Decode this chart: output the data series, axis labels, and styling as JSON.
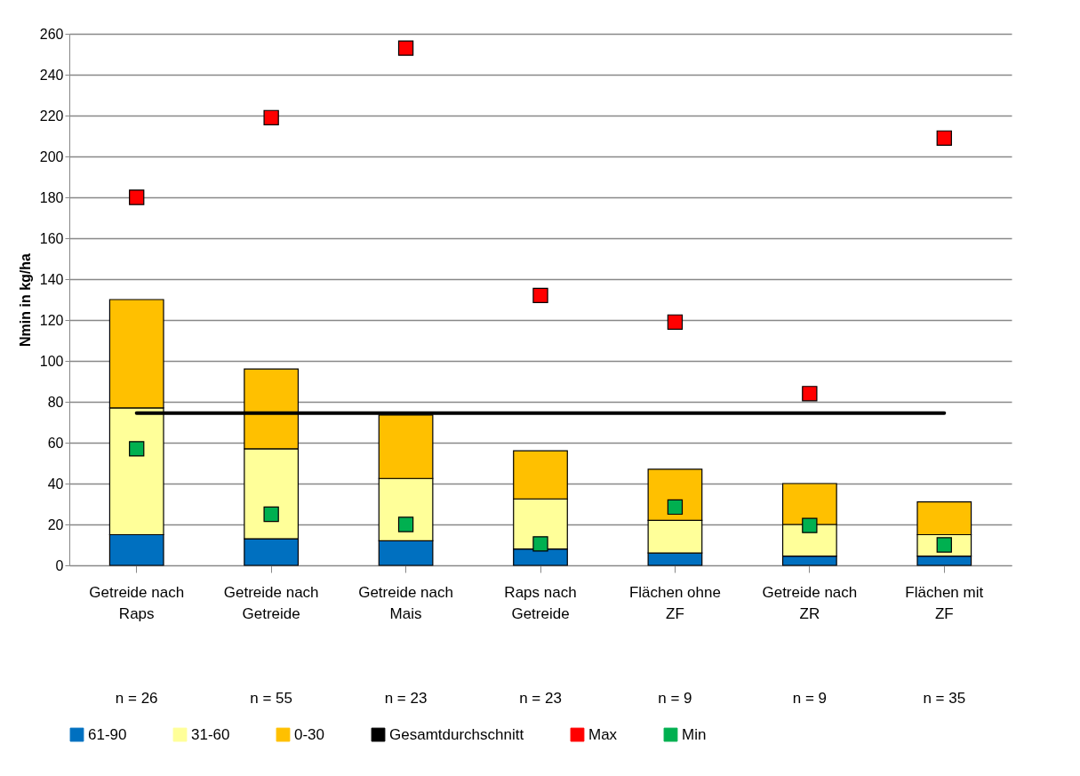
{
  "chart_data": {
    "type": "bar",
    "stacked": true,
    "ylabel": "Nmin in kg/ha",
    "categories": [
      "Getreide nach Raps",
      "Getreide nach Getreide",
      "Getreide nach Mais",
      "Raps nach Getreide",
      "Flächen ohne ZF",
      "Getreide nach ZR",
      "Flächen mit ZF"
    ],
    "series": [
      {
        "name": "61-90",
        "color": "#0070c0",
        "values": [
          15,
          13,
          12,
          8,
          6,
          4.5,
          4.5
        ]
      },
      {
        "name": "31-60",
        "color": "#ffff99",
        "values": [
          62,
          44,
          30.5,
          24.5,
          16,
          15.5,
          10.5
        ]
      },
      {
        "name": "0-30",
        "color": "#ffc000",
        "values": [
          53,
          39,
          31,
          23.5,
          25,
          20,
          16
        ]
      },
      {
        "name": "Gesamtdurchschnitt",
        "type": "line",
        "color": "#000000",
        "values": [
          74.5,
          74.5,
          74.5,
          74.5,
          74.5,
          74.5,
          74.5
        ]
      },
      {
        "name": "Max",
        "type": "scatter",
        "marker": "square",
        "color": "#ff0000",
        "values": [
          180,
          219,
          253,
          132,
          119,
          84,
          209
        ]
      },
      {
        "name": "Min",
        "type": "scatter",
        "marker": "square",
        "color": "#00b050",
        "values": [
          57,
          25,
          20,
          10.5,
          28.5,
          19.5,
          10
        ]
      }
    ],
    "annotations": [
      "n = 26",
      "n = 55",
      "n = 23",
      "n = 23",
      "n = 9",
      "n = 9",
      "n = 35"
    ],
    "ylim": [
      0,
      260
    ],
    "yticks": [
      0,
      20,
      40,
      60,
      80,
      100,
      120,
      140,
      160,
      180,
      200,
      220,
      240,
      260
    ],
    "grid": "y",
    "legend": "bottom"
  }
}
